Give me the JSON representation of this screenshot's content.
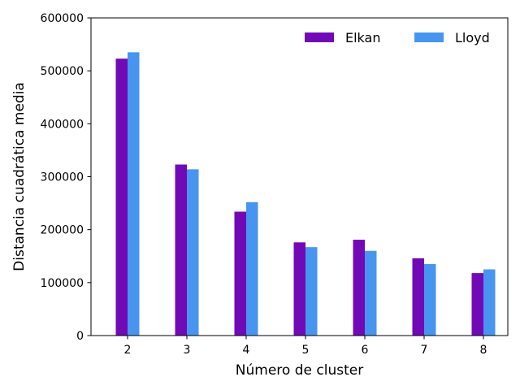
{
  "chart_data": {
    "type": "bar",
    "title": "",
    "xlabel": "Número de cluster",
    "ylabel": "Distancia cuadrática media",
    "categories": [
      "2",
      "3",
      "4",
      "5",
      "6",
      "7",
      "8"
    ],
    "series": [
      {
        "name": "Elkan",
        "color": "#7209b7",
        "values": [
          523000,
          323000,
          234000,
          176000,
          181000,
          146000,
          118000
        ]
      },
      {
        "name": "Lloyd",
        "color": "#4895ef",
        "values": [
          535000,
          314000,
          252000,
          167000,
          160000,
          135000,
          125000
        ]
      }
    ],
    "ylim": [
      0,
      600000
    ],
    "yticks": [
      "0",
      "100000",
      "200000",
      "300000",
      "400000",
      "500000",
      "600000"
    ],
    "grid": false,
    "legend_position": "top-right"
  }
}
